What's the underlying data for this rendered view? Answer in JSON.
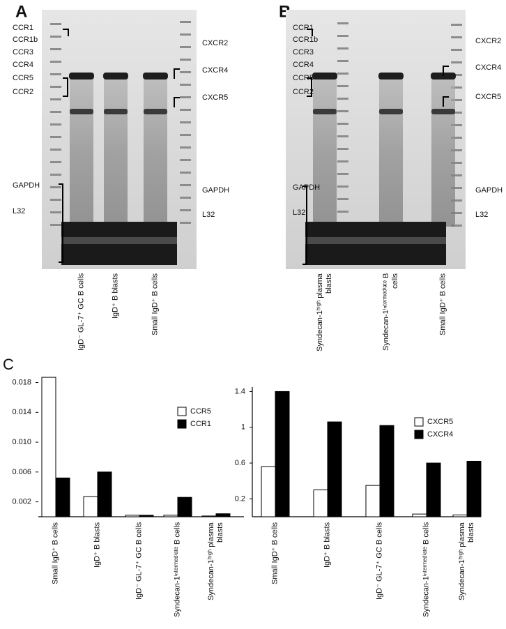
{
  "panels": [
    {
      "letter": "A",
      "left_labels": [
        "CCR1",
        "CCR1b",
        "CCR3",
        "CCR4",
        "CCR5",
        "CCR2",
        "GAPDH",
        "L32"
      ],
      "right_labels": [
        "CXCR2",
        "CXCR4",
        "CXCR5",
        "GAPDH",
        "L32"
      ],
      "lanes": [
        "IgD⁻ GL-7⁺ GC B cells",
        "IgD⁺ B blasts",
        "Small IgD⁺ B cells"
      ]
    },
    {
      "letter": "B",
      "left_labels": [
        "CCR1",
        "CCR1b",
        "CCR3",
        "CCR4",
        "CCR5",
        "CCR2",
        "GAPDH",
        "L32"
      ],
      "right_labels": [
        "CXCR2",
        "CXCR4",
        "CXCR5",
        "GAPDH",
        "L32"
      ],
      "lanes": [
        "Syndecan-1ʰⁱᵍʰ plasma blasts",
        "Syndecan-1ⁱⁿᵗᵉʳᵐᵉᵈⁱᵃᵗᵉ B cells",
        "Small IgD⁺ B cells"
      ]
    }
  ],
  "panel_c_letter": "C",
  "chart_data": [
    {
      "type": "bar",
      "categories": [
        "Small IgD⁺ B cells",
        "IgD⁺ B blasts",
        "IgD⁻ GL-7⁺ GC B cells",
        "Syndecan-1ⁱⁿᵗᵉʳᵐᵉᵈⁱᵃᵗᵉ B cells",
        "Syndecan-1ʰⁱᵍʰ plasma blasts"
      ],
      "series": [
        {
          "name": "CCR5",
          "color": "#ffffff",
          "values": [
            0.0187,
            0.0027,
            0.0002,
            0.0002,
            0.0001
          ]
        },
        {
          "name": "CCR1",
          "color": "#000000",
          "values": [
            0.0052,
            0.006,
            0.0002,
            0.0026,
            0.0004
          ]
        }
      ],
      "ylim": [
        0,
        0.0188
      ],
      "yticks": [
        0.002,
        0.006,
        {
          "value": 0.01,
          "label": "0.010"
        },
        0.014,
        0.018
      ],
      "legend": "upper right"
    },
    {
      "type": "bar",
      "categories": [
        "Small IgD⁺ B cells",
        "IgD⁺ B blasts",
        "IgD⁻ GL-7⁺ GC B cells",
        "Syndecan-1ⁱⁿᵗᵉʳᵐᵉᵈⁱᵃᵗᵉ B cells",
        "Syndecan-1ʰⁱᵍʰ plasma blasts"
      ],
      "series": [
        {
          "name": "CXCR5",
          "color": "#ffffff",
          "values": [
            0.56,
            0.3,
            0.35,
            0.03,
            0.02
          ]
        },
        {
          "name": "CXCR4",
          "color": "#000000",
          "values": [
            1.4,
            1.06,
            1.02,
            0.6,
            0.62
          ]
        }
      ],
      "ylim": [
        0,
        1.45
      ],
      "yticks": [
        0.2,
        0.6,
        1,
        1.4
      ],
      "legend": "upper right"
    }
  ]
}
